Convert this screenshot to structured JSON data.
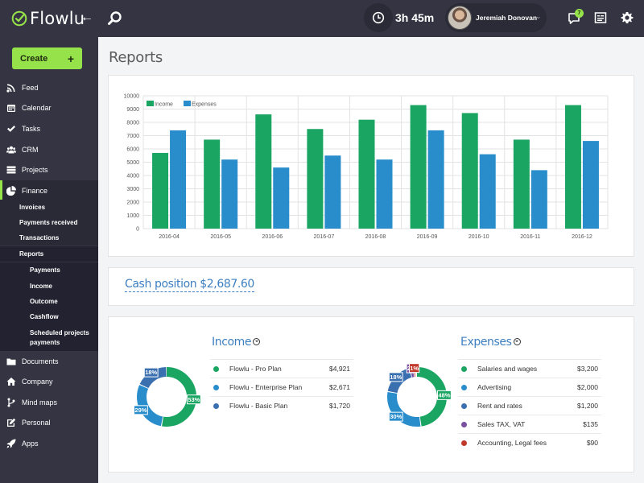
{
  "app": {
    "name": "Flowlu",
    "collapse_icon": "arrow-left-icon"
  },
  "sidebar": {
    "create_label": "Create",
    "items": [
      {
        "label": "Feed",
        "icon": "rss-icon"
      },
      {
        "label": "Calendar",
        "icon": "calendar-icon"
      },
      {
        "label": "Tasks",
        "icon": "check-icon"
      },
      {
        "label": "CRM",
        "icon": "users-icon"
      },
      {
        "label": "Projects",
        "icon": "projects-icon"
      },
      {
        "label": "Finance",
        "icon": "pie-icon"
      },
      {
        "label": "Documents",
        "icon": "folder-icon"
      },
      {
        "label": "Company",
        "icon": "home-icon"
      },
      {
        "label": "Mind maps",
        "icon": "branch-icon"
      },
      {
        "label": "Personal",
        "icon": "edit-icon"
      },
      {
        "label": "Apps",
        "icon": "rocket-icon"
      }
    ],
    "finance_sub": [
      "Invoices",
      "Payments received",
      "Transactions",
      "Reports"
    ],
    "reports_sub": [
      "Payments",
      "Income",
      "Outcome",
      "Cashflow",
      "Scheduled projects payments"
    ]
  },
  "topbar": {
    "timer": "3h 45m",
    "user_name": "Jeremiah Donovan",
    "chat_badge": "7"
  },
  "page": {
    "title": "Reports"
  },
  "chart_data": {
    "type": "bar",
    "categories": [
      "2016-04",
      "2016-05",
      "2016-06",
      "2016-07",
      "2016-08",
      "2016-09",
      "2016-10",
      "2016-11",
      "2016-12"
    ],
    "series": [
      {
        "name": "Income",
        "values": [
          5700,
          6700,
          8600,
          7500,
          8200,
          9300,
          8700,
          6700,
          9300
        ],
        "color": "#1aa563"
      },
      {
        "name": "Expenses",
        "values": [
          7400,
          5200,
          4600,
          5500,
          5200,
          7400,
          5600,
          4400,
          6600
        ],
        "color": "#2a8dcb"
      }
    ],
    "yticks": [
      "10000",
      "9000",
      "8000",
      "7000",
      "6000",
      "5000",
      "4000",
      "3000",
      "2000",
      "1000",
      "0"
    ],
    "ylim": [
      0,
      10000
    ],
    "grid": true,
    "legend": "top-left"
  },
  "cash": {
    "label": "Cash position $2,687.60"
  },
  "income": {
    "title": "Income",
    "rows": [
      {
        "name": "Flowlu - Pro Plan",
        "value": "$4,921",
        "color": "#1aa563"
      },
      {
        "name": "Flowlu - Enterprise Plan",
        "value": "$2,671",
        "color": "#2a8dcb"
      },
      {
        "name": "Flowlu - Basic Plan",
        "value": "$1,720",
        "color": "#3a6fb0"
      }
    ],
    "donut": [
      {
        "pct": 53,
        "label": "53%",
        "color": "#1aa563"
      },
      {
        "pct": 29,
        "label": "29%",
        "color": "#2a8dcb"
      },
      {
        "pct": 18,
        "label": "18%",
        "color": "#3a6fb0"
      }
    ]
  },
  "expenses": {
    "title": "Expenses",
    "rows": [
      {
        "name": "Salaries and wages",
        "value": "$3,200",
        "color": "#1aa563"
      },
      {
        "name": "Advertising",
        "value": "$2,000",
        "color": "#2a8dcb"
      },
      {
        "name": "Rent and rates",
        "value": "$1,200",
        "color": "#3a6fb0"
      },
      {
        "name": "Sales TAX, VAT",
        "value": "$135",
        "color": "#7b4fa0"
      },
      {
        "name": "Accounting, Legal fees",
        "value": "$90",
        "color": "#c0392b"
      }
    ],
    "donut": [
      {
        "pct": 48,
        "label": "48%",
        "color": "#1aa563"
      },
      {
        "pct": 30,
        "label": "30%",
        "color": "#2a8dcb"
      },
      {
        "pct": 18,
        "label": "18%",
        "color": "#3a6fb0"
      },
      {
        "pct": 2,
        "label": "2%",
        "color": "#7b4fa0"
      },
      {
        "pct": 1,
        "label": "1%",
        "color": "#c0392b"
      }
    ]
  }
}
